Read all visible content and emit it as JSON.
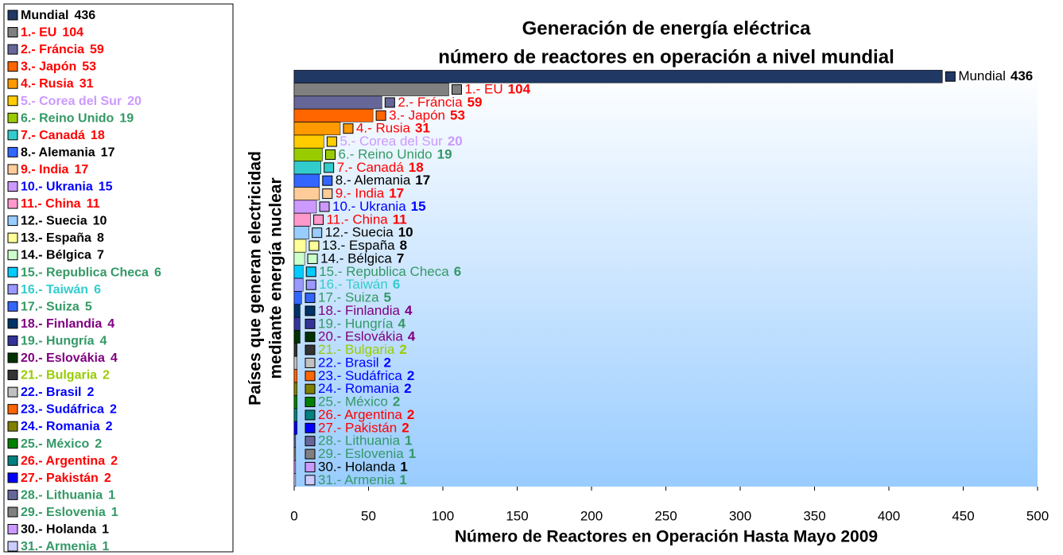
{
  "chart_data": {
    "type": "bar",
    "orientation": "horizontal",
    "title": "Generación de energía eléctrica",
    "subtitle": "número de reactores en operación a nivel mundial",
    "xlabel": "Número de Reactores en Operación Hasta Mayo 2009",
    "ylabel": [
      "Países que generan electricidad",
      "mediante energía nuclear"
    ],
    "categories": [
      "Mundial",
      "1.- EU",
      "2.- Fráncia",
      "3.- Japón",
      "4.- Rusia",
      "5.- Corea del Sur",
      "6.- Reino Unido",
      "7.- Canadá",
      "8.- Alemania",
      "9.- India",
      "10.- Ukrania",
      "11.- China",
      "12.- Suecia",
      "13.- España",
      "14.- Bélgica",
      "15.- Republica Checa",
      "16.- Taiwán",
      "17.- Suiza",
      "18.- Finlandia",
      "19.- Hungría",
      "20.- Eslovákia",
      "21.- Bulgaria",
      "22.- Brasil",
      "23.- Sudáfrica",
      "24.- Romania",
      "25.- México",
      "26.- Argentina",
      "27.- Pakistán",
      "28.- Lithuania",
      "29.- Eslovenia",
      "30.- Holanda",
      "31.- Armenia"
    ],
    "values": [
      436,
      104,
      59,
      53,
      31,
      20,
      19,
      18,
      17,
      17,
      15,
      11,
      10,
      8,
      7,
      6,
      6,
      5,
      4,
      4,
      4,
      2,
      2,
      2,
      2,
      2,
      2,
      2,
      1,
      1,
      1,
      1
    ],
    "colors": [
      "#1f3864",
      "#808080",
      "#666699",
      "#ff6600",
      "#ff9900",
      "#ffcc00",
      "#99cc00",
      "#33cccc",
      "#3366ff",
      "#ffcc99",
      "#cc99ff",
      "#ff99cc",
      "#99ccff",
      "#ffff99",
      "#ccffcc",
      "#00ccff",
      "#9999ff",
      "#3366ff",
      "#003366",
      "#333399",
      "#003300",
      "#333333",
      "#c0c0c0",
      "#ff6600",
      "#808000",
      "#008000",
      "#008080",
      "#0000ff",
      "#666699",
      "#808080",
      "#cc99ff",
      "#ccccff"
    ],
    "label_colors": [
      "#000000",
      "#ff0000",
      "#ff0000",
      "#ff0000",
      "#ff0000",
      "#cc99ff",
      "#339966",
      "#ff0000",
      "#000000",
      "#ff0000",
      "#0000ff",
      "#ff0000",
      "#000000",
      "#000000",
      "#000000",
      "#339966",
      "#33cccc",
      "#339966",
      "#800080",
      "#339966",
      "#800080",
      "#99cc00",
      "#0000ff",
      "#0000ff",
      "#0000ff",
      "#339966",
      "#ff0000",
      "#ff0000",
      "#339966",
      "#339966",
      "#000000",
      "#339966"
    ],
    "xlim": [
      0,
      500
    ],
    "xticks": [
      0,
      50,
      100,
      150,
      200,
      250,
      300,
      350,
      400,
      450,
      500
    ],
    "legend": "left"
  }
}
